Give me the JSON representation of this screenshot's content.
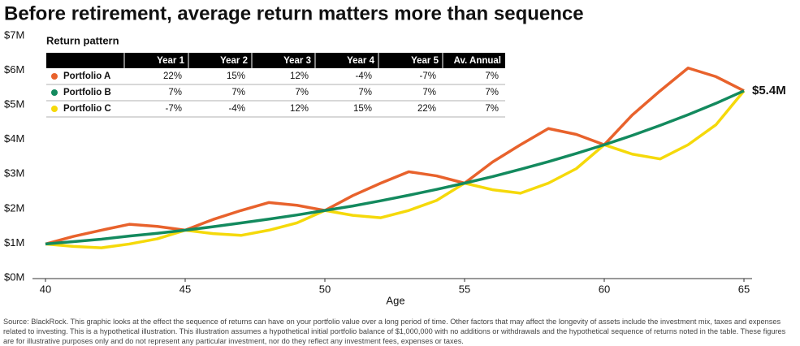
{
  "chart_data": {
    "type": "line",
    "title": "Before retirement, average return matters more than sequence",
    "x_label": "Age",
    "x": [
      40,
      41,
      42,
      43,
      44,
      45,
      46,
      47,
      48,
      49,
      50,
      51,
      52,
      53,
      54,
      55,
      56,
      57,
      58,
      59,
      60,
      61,
      62,
      63,
      64,
      65
    ],
    "xlim": [
      40,
      65
    ],
    "xticks": [
      40,
      45,
      50,
      55,
      60,
      65
    ],
    "ylim": [
      0,
      7
    ],
    "yticks": [
      {
        "value": 0,
        "label": "$0M"
      },
      {
        "value": 1,
        "label": "$1M"
      },
      {
        "value": 2,
        "label": "$2M"
      },
      {
        "value": 3,
        "label": "$3M"
      },
      {
        "value": 4,
        "label": "$4M"
      },
      {
        "value": 5,
        "label": "$5M"
      },
      {
        "value": 6,
        "label": "$6M"
      },
      {
        "value": 7,
        "label": "$7M"
      }
    ],
    "grid": false,
    "series": [
      {
        "name": "Portfolio A",
        "color": "#e8622c",
        "values": [
          1.0,
          1.22,
          1.4,
          1.57,
          1.51,
          1.4,
          1.71,
          1.97,
          2.2,
          2.12,
          1.97,
          2.4,
          2.76,
          3.09,
          2.97,
          2.76,
          3.37,
          3.87,
          4.34,
          4.17,
          3.87,
          4.73,
          5.43,
          6.09,
          5.84,
          5.43
        ]
      },
      {
        "name": "Portfolio B",
        "color": "#138a5e",
        "values": [
          1.0,
          1.07,
          1.14,
          1.23,
          1.31,
          1.4,
          1.5,
          1.61,
          1.72,
          1.84,
          1.97,
          2.1,
          2.25,
          2.41,
          2.58,
          2.76,
          2.95,
          3.16,
          3.38,
          3.62,
          3.87,
          4.14,
          4.43,
          4.74,
          5.07,
          5.43
        ]
      },
      {
        "name": "Portfolio C",
        "color": "#f5d90a",
        "values": [
          1.0,
          0.93,
          0.89,
          1.0,
          1.15,
          1.4,
          1.3,
          1.25,
          1.4,
          1.61,
          1.97,
          1.83,
          1.76,
          1.97,
          2.26,
          2.76,
          2.57,
          2.47,
          2.76,
          3.18,
          3.87,
          3.6,
          3.46,
          3.87,
          4.45,
          5.43
        ]
      }
    ],
    "annotation": "$5.4M",
    "table": {
      "title": "Return pattern",
      "columns": [
        "Year 1",
        "Year 2",
        "Year 3",
        "Year 4",
        "Year 5",
        "Av. Annual"
      ],
      "rows": [
        [
          "22%",
          "15%",
          "12%",
          "-4%",
          "-7%",
          "7%"
        ],
        [
          "7%",
          "7%",
          "7%",
          "7%",
          "7%",
          "7%"
        ],
        [
          "-7%",
          "-4%",
          "12%",
          "15%",
          "22%",
          "7%"
        ]
      ]
    }
  },
  "source": "Source: BlackRock. This graphic looks at the effect the sequence of returns can have on your portfolio value over a long period of time. Other factors that may affect the longevity of assets include the investment mix, taxes and expenses related to investing. This is a hypothetical illustration. This illustration assumes a hypothetical initial portfolio balance of $1,000,000 with no additions or withdrawals and the hypothetical sequence of returns noted in the table. These figures are for illustrative purposes only and do not represent any particular investment, nor do they reflect any investment fees, expenses or taxes."
}
